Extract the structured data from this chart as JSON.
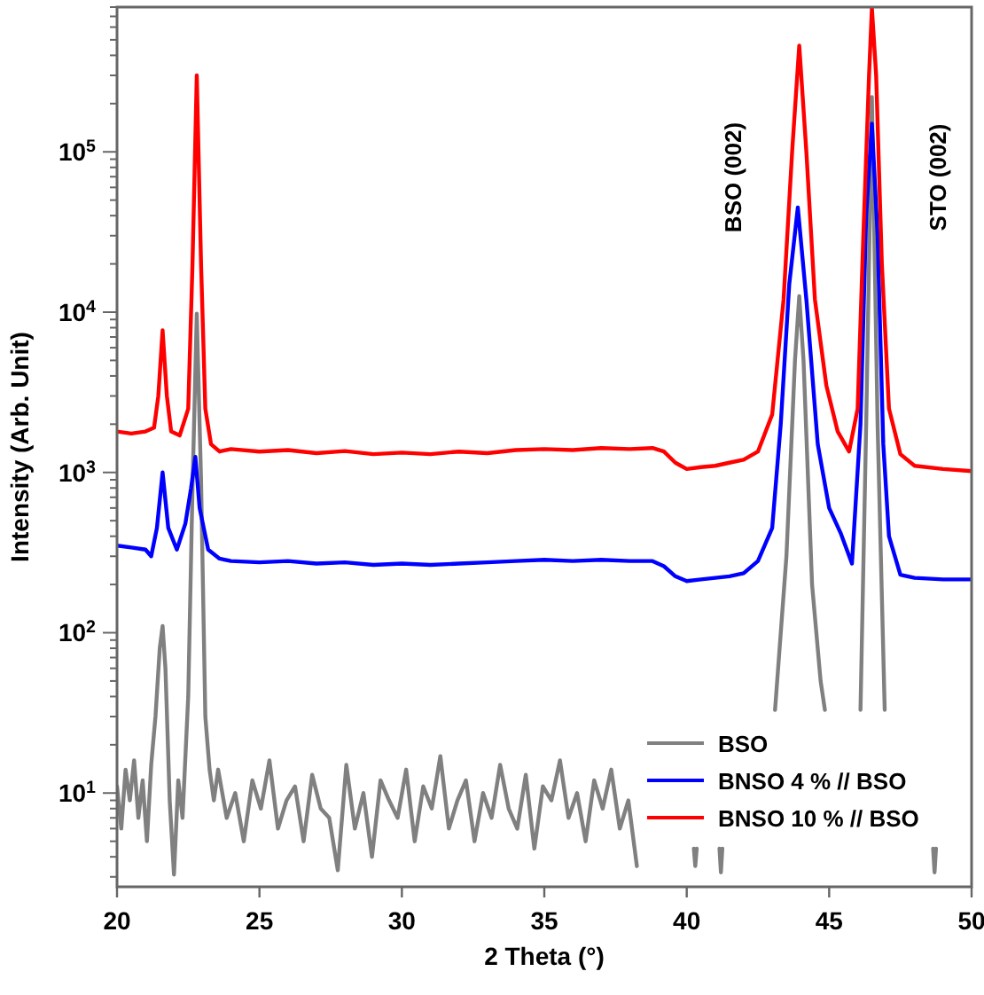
{
  "chart_data": {
    "type": "line",
    "xlabel": "2 Theta (°)",
    "ylabel": "Intensity (Arb. Unit)",
    "log": "y",
    "legend": "bottom right",
    "grid": false,
    "marker": "none",
    "line_style": "solid",
    "xlim": [
      20,
      50
    ],
    "xticks": [
      20,
      25,
      30,
      35,
      40,
      45,
      50
    ],
    "ylim": [
      2.6,
      800000
    ],
    "yticks": [
      {
        "value": 3,
        "label": null
      },
      {
        "value": 4,
        "label": null
      },
      {
        "value": 5,
        "label": null
      },
      {
        "value": 6,
        "label": null
      },
      {
        "value": 7,
        "label": null
      },
      {
        "value": 8,
        "label": null
      },
      {
        "value": 9,
        "label": null
      },
      {
        "value": 10,
        "label": "10$^{1}$"
      },
      {
        "value": 20,
        "label": null
      },
      {
        "value": 30,
        "label": null
      },
      {
        "value": 40,
        "label": null
      },
      {
        "value": 50,
        "label": null
      },
      {
        "value": 60,
        "label": null
      },
      {
        "value": 70,
        "label": null
      },
      {
        "value": 80,
        "label": null
      },
      {
        "value": 90,
        "label": null
      },
      {
        "value": 100,
        "label": "10$^{2}$"
      },
      {
        "value": 200,
        "label": null
      },
      {
        "value": 300,
        "label": null
      },
      {
        "value": 400,
        "label": null
      },
      {
        "value": 500,
        "label": null
      },
      {
        "value": 600,
        "label": null
      },
      {
        "value": 700,
        "label": null
      },
      {
        "value": 800,
        "label": null
      },
      {
        "value": 900,
        "label": null
      },
      {
        "value": 1000,
        "label": "10$^{3}$"
      },
      {
        "value": 2000,
        "label": null
      },
      {
        "value": 3000,
        "label": null
      },
      {
        "value": 4000,
        "label": null
      },
      {
        "value": 5000,
        "label": null
      },
      {
        "value": 6000,
        "label": null
      },
      {
        "value": 7000,
        "label": null
      },
      {
        "value": 8000,
        "label": null
      },
      {
        "value": 9000,
        "label": null
      },
      {
        "value": 10000,
        "label": "10$^{4}$"
      },
      {
        "value": 20000,
        "label": null
      },
      {
        "value": 30000,
        "label": null
      },
      {
        "value": 40000,
        "label": null
      },
      {
        "value": 50000,
        "label": null
      },
      {
        "value": 60000,
        "label": null
      },
      {
        "value": 70000,
        "label": null
      },
      {
        "value": 80000,
        "label": null
      },
      {
        "value": 90000,
        "label": null
      },
      {
        "value": 100000,
        "label": "10$^{5}$"
      },
      {
        "value": 200000,
        "label": null
      },
      {
        "value": 300000,
        "label": null
      },
      {
        "value": 400000,
        "label": null
      },
      {
        "value": 500000,
        "label": null
      },
      {
        "value": 600000,
        "label": null
      },
      {
        "value": 700000,
        "label": null
      },
      {
        "value": 800000,
        "label": null
      }
    ],
    "annotations": [
      "BSO (002)",
      "STO (002)"
    ],
    "series": [
      {
        "name": "BSO",
        "color": "#808080",
        "x": [
          20,
          20.15,
          20.3,
          20.45,
          20.6,
          20.75,
          20.9,
          21.05,
          21.2,
          21.35,
          21.5,
          21.6,
          21.7,
          21.85,
          22.0,
          22.15,
          22.3,
          22.5,
          22.65,
          22.8,
          22.95,
          23.1,
          23.25,
          23.4,
          23.55,
          23.85,
          24.15,
          24.45,
          24.75,
          25.05,
          25.35,
          25.65,
          25.95,
          26.25,
          26.55,
          26.85,
          27.15,
          27.45,
          27.75,
          28.05,
          28.35,
          28.65,
          28.95,
          29.25,
          29.55,
          29.85,
          30.15,
          30.45,
          30.75,
          31.05,
          31.35,
          31.65,
          31.95,
          32.25,
          32.55,
          32.85,
          33.15,
          33.45,
          33.75,
          34.05,
          34.35,
          34.65,
          34.95,
          35.25,
          35.55,
          35.85,
          36.15,
          36.45,
          36.75,
          37.05,
          37.35,
          37.65,
          37.95,
          38.25,
          38.4,
          40.25,
          40.3,
          40.35,
          40.4,
          41.15,
          41.2,
          41.25,
          41.3,
          43.1,
          43.5,
          43.8,
          43.95,
          44.1,
          44.4,
          44.7,
          44.85,
          45,
          46.1,
          46.3,
          46.5,
          46.7,
          46.95,
          47.1,
          48.65,
          48.7,
          48.75
        ],
        "values": [
          11,
          6,
          14,
          9,
          16,
          7,
          12,
          5,
          15,
          30,
          80,
          110,
          60,
          9,
          3.1,
          12,
          7,
          40,
          800,
          9800,
          900,
          30,
          14,
          9,
          14,
          7,
          10,
          5,
          12,
          8,
          16,
          6,
          9,
          11,
          5,
          13,
          8,
          7,
          3.3,
          15,
          6,
          10,
          4,
          12,
          9,
          7,
          14,
          5,
          11,
          8,
          17,
          6,
          9,
          12,
          5,
          10,
          7,
          15,
          8,
          6,
          13,
          4.5,
          11,
          9,
          16,
          7,
          10,
          5,
          12,
          8,
          14,
          6,
          9,
          3.5,
          null,
          4.5,
          3.5,
          4.5,
          null,
          4.5,
          3.2,
          4.5,
          null,
          33,
          300,
          5000,
          12600,
          5000,
          200,
          50,
          33,
          null,
          33,
          2000,
          220000,
          2000,
          33,
          null,
          4.5,
          3.2,
          4.5
        ]
      },
      {
        "name": "BNSO 4 % // BSO",
        "color": "#0000ff",
        "x": [
          20,
          20.5,
          21,
          21.2,
          21.4,
          21.6,
          21.8,
          22.1,
          22.4,
          22.6,
          22.75,
          22.9,
          23.2,
          23.6,
          24,
          25,
          26,
          27,
          28,
          29,
          30,
          31,
          32,
          33,
          34,
          35,
          36,
          37,
          38,
          38.8,
          39.2,
          39.6,
          40,
          40.5,
          41,
          41.5,
          42,
          42.5,
          43,
          43.3,
          43.6,
          43.9,
          44.2,
          44.6,
          45,
          45.4,
          45.8,
          46.1,
          46.3,
          46.5,
          46.7,
          46.9,
          47.1,
          47.5,
          48,
          49,
          50
        ],
        "values": [
          350,
          340,
          330,
          300,
          450,
          1000,
          450,
          330,
          480,
          800,
          1250,
          600,
          330,
          290,
          280,
          275,
          280,
          270,
          275,
          265,
          270,
          265,
          270,
          275,
          280,
          285,
          280,
          285,
          280,
          280,
          260,
          225,
          210,
          215,
          220,
          225,
          235,
          280,
          450,
          2000,
          15000,
          45000,
          12000,
          1500,
          600,
          420,
          270,
          2000,
          40000,
          150000,
          30000,
          1500,
          400,
          230,
          220,
          215,
          215
        ]
      },
      {
        "name": "BNSO 10 % // BSO",
        "color": "#ff0000",
        "x": [
          20,
          20.5,
          21,
          21.3,
          21.45,
          21.6,
          21.75,
          21.9,
          22.2,
          22.5,
          22.65,
          22.8,
          22.95,
          23.1,
          23.3,
          23.6,
          24,
          25,
          26,
          27,
          28,
          29,
          30,
          31,
          32,
          33,
          34,
          35,
          36,
          37,
          38,
          38.8,
          39.2,
          39.6,
          40,
          40.5,
          41,
          41.5,
          42,
          42.5,
          43,
          43.4,
          43.7,
          43.95,
          44.2,
          44.5,
          44.9,
          45.3,
          45.7,
          46,
          46.2,
          46.4,
          46.5,
          46.65,
          46.85,
          47.1,
          47.5,
          48,
          49,
          50
        ],
        "values": [
          1800,
          1750,
          1800,
          1900,
          3000,
          7700,
          3000,
          1800,
          1700,
          2500,
          20000,
          300000,
          20000,
          2500,
          1500,
          1350,
          1400,
          1350,
          1380,
          1320,
          1360,
          1300,
          1330,
          1300,
          1350,
          1320,
          1380,
          1400,
          1380,
          1420,
          1400,
          1420,
          1350,
          1150,
          1050,
          1080,
          1100,
          1150,
          1200,
          1350,
          2300,
          12000,
          100000,
          460000,
          100000,
          12000,
          3500,
          1800,
          1350,
          2500,
          30000,
          300000,
          790000,
          300000,
          20000,
          2500,
          1300,
          1100,
          1050,
          1020
        ]
      }
    ]
  }
}
